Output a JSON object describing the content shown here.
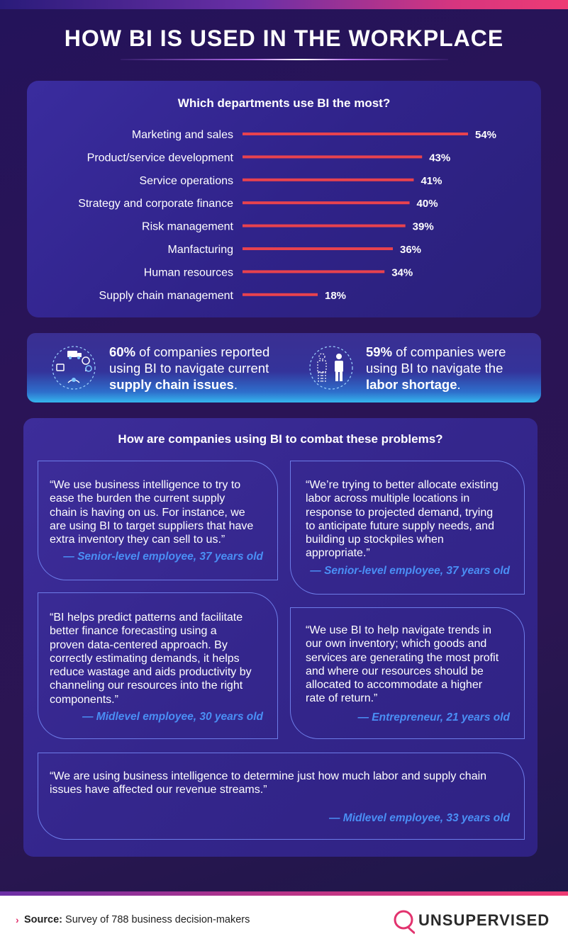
{
  "title": "HOW BI IS USED IN THE WORKPLACE",
  "colors": {
    "bar": "#e8424e",
    "accent_blue": "#4a8ff5",
    "brand_pink": "#e2336e"
  },
  "chart_data": {
    "type": "bar",
    "orientation": "horizontal",
    "title": "Which departments use BI the most?",
    "categories": [
      "Marketing and sales",
      "Product/service development",
      "Service operations",
      "Strategy and corporate finance",
      "Risk management",
      "Manfacturing",
      "Human resources",
      "Supply chain management"
    ],
    "values": [
      54,
      43,
      41,
      40,
      39,
      36,
      34,
      18
    ],
    "value_labels": [
      "54%",
      "43%",
      "41%",
      "40%",
      "39%",
      "36%",
      "34%",
      "18%"
    ],
    "xlim": [
      0,
      54
    ],
    "grid": false,
    "legend": "none"
  },
  "stats": [
    {
      "icon": "supply-chain-icon",
      "percent": "60%",
      "text": " of companies reported using BI to navigate current ",
      "emphasis": "supply chain issues",
      "end": "."
    },
    {
      "icon": "labor-workers-icon",
      "percent": "59%",
      "text": " of companies were using BI to navigate the ",
      "emphasis": "labor shortage",
      "end": "."
    }
  ],
  "quotes_section": {
    "title": "How are companies using BI to combat these problems?",
    "quotes": [
      {
        "lines": [
          "“We use business intelligence to try to",
          "ease the burden the current supply",
          "chain is having on us. For instance, we",
          "are using BI to target suppliers that have",
          "extra inventory they can sell to us.”"
        ],
        "attribution": "— Senior-level employee, 37 years old"
      },
      {
        "lines": [
          "“We’re trying to better allocate existing",
          "labor across multiple locations in",
          "response to projected demand,  trying",
          "to anticipate future supply needs, and",
          "building up stockpiles when",
          "appropriate.”"
        ],
        "attribution": "— Senior-level employee, 37 years old"
      },
      {
        "lines": [
          "“BI helps predict patterns and facilitate",
          "better finance forecasting using a",
          "proven data-centered approach. By",
          "correctly estimating demands, it helps",
          "reduce wastage and aids productivity by",
          "channeling our resources into the right",
          "components.”"
        ],
        "attribution": "— Midlevel employee, 30 years old"
      },
      {
        "lines": [
          "“We use BI to help navigate trends in",
          "our own inventory; which goods and",
          "services are generating the most profit",
          "and where our resources should be",
          "allocated to accommodate a higher",
          "rate of return.”"
        ],
        "attribution": "— Entrepreneur, 21 years old"
      },
      {
        "lines": [
          "“We are using business intelligence to determine just how much labor and supply chain",
          "issues have affected our revenue streams.”"
        ],
        "attribution": "— Midlevel employee, 33 years old"
      }
    ]
  },
  "footer": {
    "source_label": "Source:",
    "source_text": " Survey of 788 business decision-makers",
    "brand": "UNSUPERVISED"
  }
}
